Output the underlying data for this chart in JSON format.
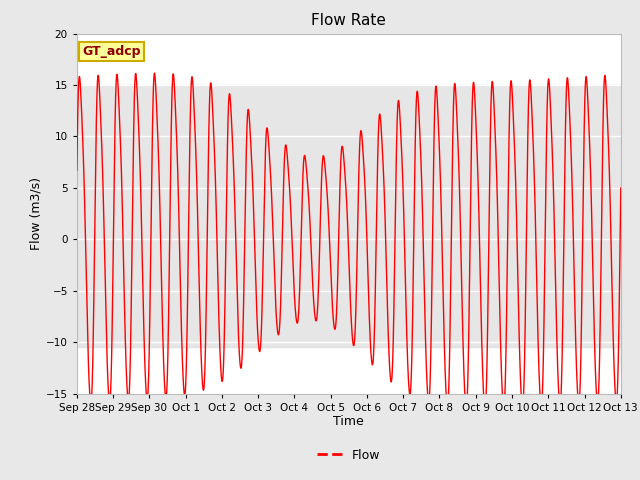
{
  "title": "Flow Rate",
  "xlabel": "Time",
  "ylabel": "Flow (m3/s)",
  "ylim": [
    -15,
    20
  ],
  "yticks": [
    -15,
    -10,
    -5,
    0,
    5,
    10,
    15,
    20
  ],
  "line_color": "#FF0000",
  "line_width": 1.0,
  "legend_label": "Flow",
  "annotation_text": "GT_adcp",
  "annotation_bg": "#FFFF99",
  "annotation_border": "#CCAA00",
  "shade_ymin": -10.5,
  "shade_ymax": 15.0,
  "shade_color": "#DCDCDC",
  "shade_alpha": 0.7,
  "plot_bg": "#FFFFFF",
  "fig_bg": "#E8E8E8",
  "period_hours": 12.42,
  "x_tick_labels": [
    "Sep 28",
    "Sep 29",
    "Sep 30",
    "Oct 1",
    "Oct 2",
    "Oct 3",
    "Oct 4",
    "Oct 5",
    "Oct 6",
    "Oct 7",
    "Oct 8",
    "Oct 9",
    "Oct 10",
    "Oct 11",
    "Oct 12",
    "Oct 13"
  ],
  "x_tick_positions": [
    0,
    1,
    2,
    3,
    4,
    5,
    6,
    7,
    8,
    9,
    10,
    11,
    12,
    13,
    14,
    15
  ]
}
